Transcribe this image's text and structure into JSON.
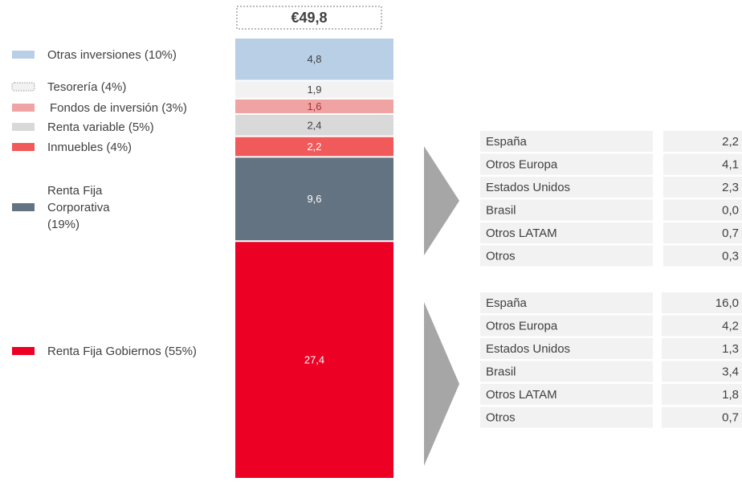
{
  "chart_data": {
    "type": "stacked_bar",
    "total": 49.8,
    "total_label": "€49,8",
    "series": [
      {
        "name": "Otras inversiones (10%)",
        "color": "#b8cfe6",
        "values": [
          4.8
        ],
        "value_labels": [
          "4,8"
        ]
      },
      {
        "name": "Tesorería (4%)",
        "color": "#f2f2f2",
        "values": [
          1.9
        ],
        "value_labels": [
          "1,9"
        ]
      },
      {
        "name": "Fondos de inversión (3%)",
        "color": "#f0a3a3",
        "values": [
          1.6
        ],
        "value_labels": [
          "1,6"
        ]
      },
      {
        "name": "Renta variable (5%)",
        "color": "#d9d9d9",
        "values": [
          2.4
        ],
        "value_labels": [
          "2,4"
        ]
      },
      {
        "name": "Inmuebles (4%)",
        "color": "#f05a5a",
        "values": [
          2.2
        ],
        "value_labels": [
          "2,2"
        ]
      },
      {
        "name": "Renta Fija Corporativa (19%)",
        "color": "#637381",
        "values": [
          9.6
        ],
        "value_labels": [
          "9,6"
        ]
      },
      {
        "name": "Renta Fija Gobiernos (55%)",
        "color": "#ec0024",
        "values": [
          27.4
        ],
        "value_labels": [
          "27,4"
        ]
      }
    ]
  },
  "tables": [
    {
      "rows": [
        [
          "España",
          "2,2"
        ],
        [
          "Otros Europa",
          "4,1"
        ],
        [
          "Estados Unidos",
          "2,3"
        ],
        [
          "Brasil",
          "0,0"
        ],
        [
          "Otros LATAM",
          "0,7"
        ],
        [
          "Otros",
          "0,3"
        ]
      ]
    },
    {
      "rows": [
        [
          "España",
          "16,0"
        ],
        [
          "Otros Europa",
          "4,2"
        ],
        [
          "Estados Unidos",
          "1,3"
        ],
        [
          "Brasil",
          "3,4"
        ],
        [
          "Otros LATAM",
          "1,8"
        ],
        [
          "Otros",
          "0,7"
        ]
      ]
    }
  ]
}
